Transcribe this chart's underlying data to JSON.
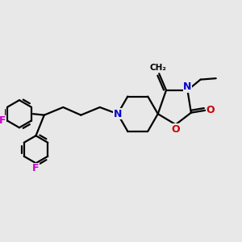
{
  "bg_color": "#e8e8e8",
  "bond_color": "#000000",
  "nitrogen_color": "#0000cc",
  "oxygen_color": "#cc0000",
  "fluorine_color": "#cc00cc",
  "lw": 1.6,
  "figsize": [
    3.0,
    3.0
  ],
  "dpi": 100,
  "xlim": [
    0,
    10
  ],
  "ylim": [
    0,
    10
  ]
}
